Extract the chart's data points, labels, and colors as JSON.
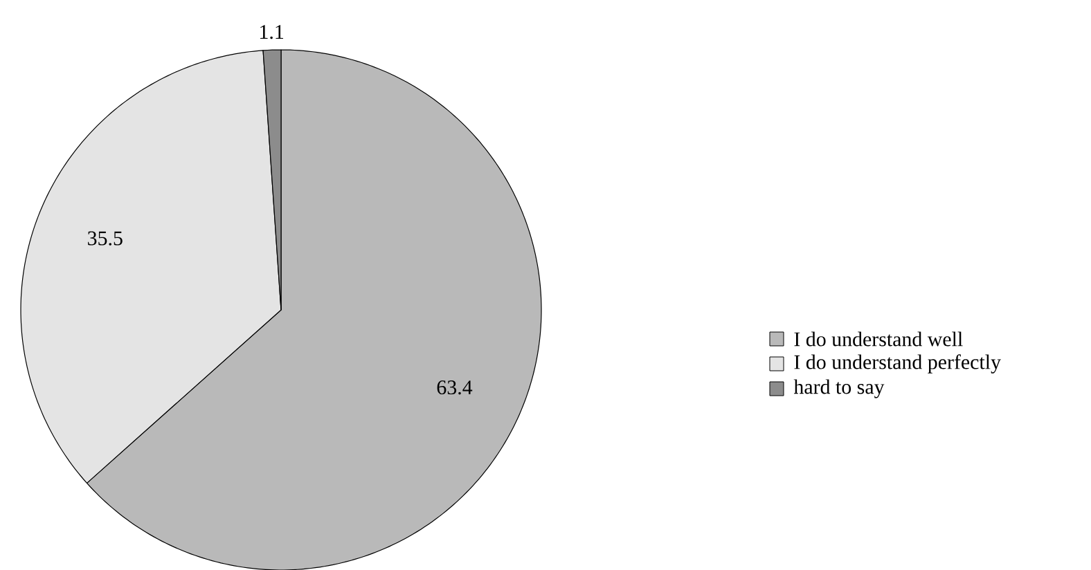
{
  "chart_data": {
    "type": "pie",
    "categories": [
      "I do understand well",
      "I do understand perfectly",
      "hard to say"
    ],
    "values": [
      63.4,
      35.5,
      1.1
    ],
    "colors": [
      "#b9b9b9",
      "#e4e4e4",
      "#8c8c8c"
    ],
    "data_labels": true,
    "legend": "right"
  }
}
